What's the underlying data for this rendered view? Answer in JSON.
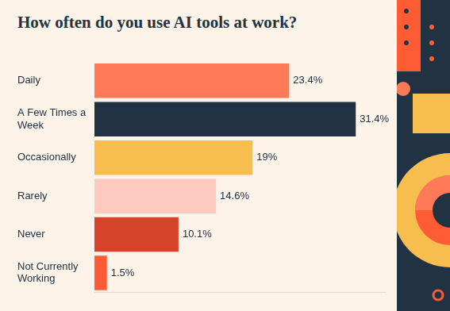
{
  "chart_data": {
    "type": "bar",
    "orientation": "horizontal",
    "title": "How often do you use AI tools at work?",
    "categories": [
      "Daily",
      "A Few Times a Week",
      "Occasionally",
      "Rarely",
      "Never",
      "Not Currently Working"
    ],
    "values": [
      23.4,
      31.4,
      19,
      14.6,
      10.1,
      1.5
    ],
    "value_labels": [
      "23.4%",
      "31.4%",
      "19%",
      "14.6%",
      "10.1%",
      "1.5%"
    ],
    "colors": [
      "#ff7a59",
      "#213343",
      "#f8bd4f",
      "#ffcac0",
      "#d6432b",
      "#ff5c35"
    ],
    "xlim": [
      0,
      35
    ],
    "grid": false,
    "data_labels": true,
    "tick_labels": "y"
  }
}
